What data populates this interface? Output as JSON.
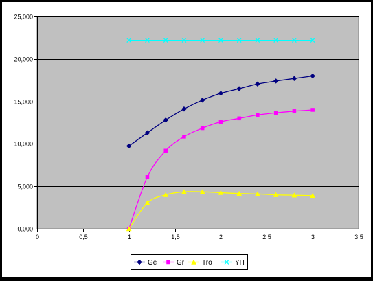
{
  "chart_data": {
    "type": "line",
    "title": "",
    "xlabel": "",
    "ylabel": "",
    "xlim": [
      0,
      3.5
    ],
    "ylim": [
      0,
      25000
    ],
    "x_ticks": [
      {
        "value": 0,
        "label": "0"
      },
      {
        "value": 0.5,
        "label": "0,5"
      },
      {
        "value": 1,
        "label": "1"
      },
      {
        "value": 1.5,
        "label": "1,5"
      },
      {
        "value": 2,
        "label": "2"
      },
      {
        "value": 2.5,
        "label": "2,5"
      },
      {
        "value": 3,
        "label": "3"
      },
      {
        "value": 3.5,
        "label": "3,5"
      }
    ],
    "y_ticks": [
      {
        "value": 0,
        "label": "0,000"
      },
      {
        "value": 5000,
        "label": "5,000"
      },
      {
        "value": 10000,
        "label": "10,000"
      },
      {
        "value": 15000,
        "label": "15,000"
      },
      {
        "value": 20000,
        "label": "20,000"
      },
      {
        "value": 25000,
        "label": "25,000"
      }
    ],
    "grid": "horizontal",
    "legend_position": "bottom",
    "x": [
      1,
      1.2,
      1.4,
      1.6,
      1.8,
      2,
      2.2,
      2.4,
      2.6,
      2.8,
      3
    ],
    "series": [
      {
        "name": "Ge",
        "color": "#000080",
        "marker": "diamond",
        "values": [
          9750,
          11300,
          12800,
          14100,
          15150,
          15950,
          16500,
          17050,
          17400,
          17700,
          18000
        ]
      },
      {
        "name": "Gr",
        "color": "#ff00ff",
        "marker": "square",
        "values": [
          0,
          6100,
          9200,
          10850,
          11850,
          12600,
          13000,
          13400,
          13650,
          13850,
          14000
        ]
      },
      {
        "name": "Tro",
        "color": "#ffff00",
        "marker": "triangle",
        "values": [
          0,
          3050,
          4000,
          4350,
          4350,
          4250,
          4150,
          4100,
          4000,
          3950,
          3900
        ]
      },
      {
        "name": "YH",
        "color": "#00ffff",
        "marker": "x",
        "values": [
          22200,
          22200,
          22200,
          22200,
          22200,
          22200,
          22200,
          22200,
          22200,
          22200,
          22200
        ]
      }
    ]
  },
  "colors": {
    "plot_background": "#c0c0c0",
    "chart_background": "#ffffff",
    "outer_frame": "#000000"
  }
}
